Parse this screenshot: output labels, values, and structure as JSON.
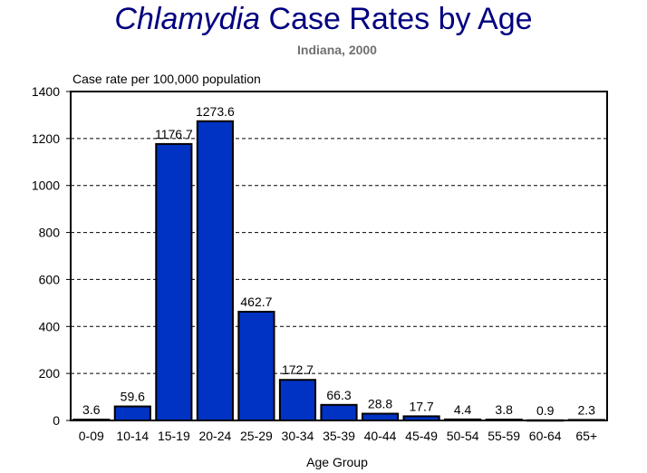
{
  "chart_data": {
    "type": "bar",
    "title_italic": "Chlamydia",
    "title_rest": " Case Rates by Age",
    "subtitle": "Indiana, 2000",
    "ylabel": "Case rate per 100,000 population",
    "xlabel": "Age Group",
    "categories": [
      "0-09",
      "10-14",
      "15-19",
      "20-24",
      "25-29",
      "30-34",
      "35-39",
      "40-44",
      "45-49",
      "50-54",
      "55-59",
      "60-64",
      "65+"
    ],
    "values": [
      3.6,
      59.6,
      1176.7,
      1273.6,
      462.7,
      172.7,
      66.3,
      28.8,
      17.7,
      4.4,
      3.8,
      0.9,
      2.3
    ],
    "value_labels": [
      "3.6",
      "59.6",
      "1176.7",
      "1273.6",
      "462.7",
      "172.7",
      "66.3",
      "28.8",
      "17.7",
      "4.4",
      "3.8",
      "0.9",
      "2.3"
    ],
    "ylim": [
      0,
      1400
    ],
    "yticks": [
      0,
      200,
      400,
      600,
      800,
      1000,
      1200,
      1400
    ],
    "grid": "horizontal dashed",
    "bar_color": "#0033C4",
    "title_color": "#000080"
  }
}
